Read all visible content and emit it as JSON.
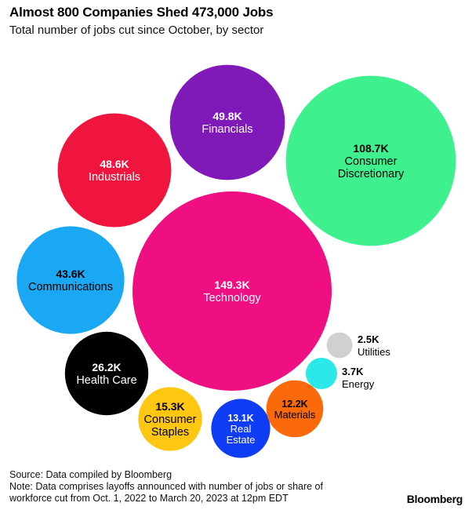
{
  "title": "Almost 800 Companies Shed 473,000 Jobs",
  "subtitle": "Total number of jobs cut since October, by sector",
  "source": "Source: Data compiled by Bloomberg",
  "note_line1": "Note: Data comprises layoffs announced with number of jobs or share of",
  "note_line2": "workforce cut from Oct. 1, 2022 to March 20, 2023 at 12pm EDT",
  "brand": "Bloomberg",
  "chart_data": {
    "type": "bubble",
    "title": "Almost 800 Companies Shed 473,000 Jobs",
    "subtitle": "Total number of jobs cut since October, by sector",
    "unit": "jobs cut",
    "series": [
      {
        "name": "Technology",
        "label_lines": [
          "Technology"
        ],
        "value": 149300,
        "value_label": "149.3K",
        "color": "#ef0f82",
        "text_color": "#ffffff"
      },
      {
        "name": "Consumer Discretionary",
        "label_lines": [
          "Consumer",
          "Discretionary"
        ],
        "value": 108700,
        "value_label": "108.7K",
        "color": "#3ff08f",
        "text_color": "#000000"
      },
      {
        "name": "Financials",
        "label_lines": [
          "Financials"
        ],
        "value": 49800,
        "value_label": "49.8K",
        "color": "#7f1ab8",
        "text_color": "#ffffff"
      },
      {
        "name": "Industrials",
        "label_lines": [
          "Industrials"
        ],
        "value": 48600,
        "value_label": "48.6K",
        "color": "#f0153e",
        "text_color": "#ffffff"
      },
      {
        "name": "Communications",
        "label_lines": [
          "Communications"
        ],
        "value": 43600,
        "value_label": "43.6K",
        "color": "#1aa8f5",
        "text_color": "#000000"
      },
      {
        "name": "Health Care",
        "label_lines": [
          "Health Care"
        ],
        "value": 26200,
        "value_label": "26.2K",
        "color": "#000000",
        "text_color": "#ffffff"
      },
      {
        "name": "Consumer Staples",
        "label_lines": [
          "Consumer",
          "Staples"
        ],
        "value": 15300,
        "value_label": "15.3K",
        "color": "#ffc612",
        "text_color": "#000000"
      },
      {
        "name": "Real Estate",
        "label_lines": [
          "Real",
          "Estate"
        ],
        "value": 13100,
        "value_label": "13.1K",
        "color": "#0f3cf5",
        "text_color": "#ffffff"
      },
      {
        "name": "Materials",
        "label_lines": [
          "Materials"
        ],
        "value": 12200,
        "value_label": "12.2K",
        "color": "#fa6a0a",
        "text_color": "#000000"
      },
      {
        "name": "Energy",
        "label_lines": [
          "Energy"
        ],
        "value": 3700,
        "value_label": "3.7K",
        "color": "#2de8e8",
        "text_color": "#000000",
        "label_outside": true
      },
      {
        "name": "Utilities",
        "label_lines": [
          "Utilities"
        ],
        "value": 2500,
        "value_label": "2.5K",
        "color": "#d0d0d0",
        "text_color": "#000000",
        "label_outside": true
      }
    ]
  }
}
